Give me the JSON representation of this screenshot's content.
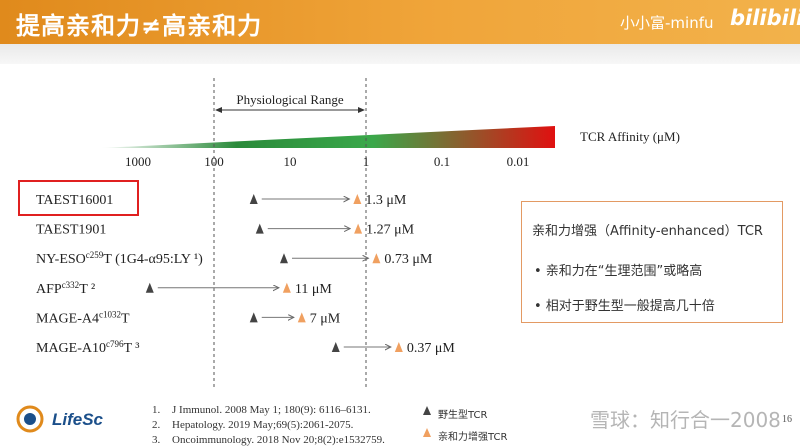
{
  "header": {
    "title": "提高亲和力≠高亲和力",
    "author": "小小富-minfu",
    "logo": "bilibili"
  },
  "colors": {
    "header_orange": "#e08a1c",
    "wild_type_marker": "#444444",
    "enhanced_marker": "#f0a060",
    "highlight_red": "#e02020",
    "box_border": "#e39a63"
  },
  "chart_data": {
    "type": "scatter",
    "x_scale": "log",
    "x_reversed": true,
    "axis_label": "TCR Affinity (μM)",
    "ticks": [
      "1000",
      "100",
      "10",
      "1",
      "0.1",
      "0.01"
    ],
    "physiological_range": {
      "label": "Physiological Range",
      "from": 100,
      "to": 1
    },
    "tcrs": [
      {
        "name": "TAEST16001",
        "sup": "",
        "post": "",
        "wild_type": 30,
        "enhanced": 1.3,
        "label": "1.3 μM",
        "highlighted": true
      },
      {
        "name": "TAEST1901",
        "sup": "",
        "post": "",
        "wild_type": 25,
        "enhanced": 1.27,
        "label": "1.27 μM",
        "highlighted": false
      },
      {
        "name": "NY-ESO",
        "sup": "c259",
        "post": "T (1G4-α95:LY ¹)",
        "wild_type": 12,
        "enhanced": 0.73,
        "label": "0.73 μM",
        "highlighted": false
      },
      {
        "name": "AFP",
        "sup": "c332",
        "post": "T ²",
        "wild_type": 700,
        "enhanced": 11,
        "label": "11 μM",
        "highlighted": false
      },
      {
        "name": "MAGE-A4",
        "sup": "c1032",
        "post": "T",
        "wild_type": 30,
        "enhanced": 7,
        "label": "7 μM",
        "highlighted": false
      },
      {
        "name": "MAGE-A10",
        "sup": "c796",
        "post": "T ³",
        "wild_type": 2.5,
        "enhanced": 0.37,
        "label": "0.37 μM",
        "highlighted": false
      }
    ]
  },
  "summary_box": {
    "title": "亲和力增强（Affinity-enhanced）TCR",
    "bullets": [
      "•   亲和力在“生理范围”或略高",
      "•   相对于野生型一般提高几十倍"
    ]
  },
  "legend": {
    "wild_type": "野生型TCR",
    "enhanced": "亲和力增强TCR"
  },
  "references": [
    {
      "num": "1.",
      "text": "J Immunol. 2008 May 1; 180(9): 6116–6131."
    },
    {
      "num": "2.",
      "text": "Hepatology. 2019 May;69(5):2061-2075."
    },
    {
      "num": "3.",
      "text": "Oncoimmunology. 2018 Nov 20;8(2):e1532759."
    }
  ],
  "footer": {
    "company_logo": "LifeSc",
    "watermark": "雪球：知行合一2008",
    "page_number": "16"
  }
}
